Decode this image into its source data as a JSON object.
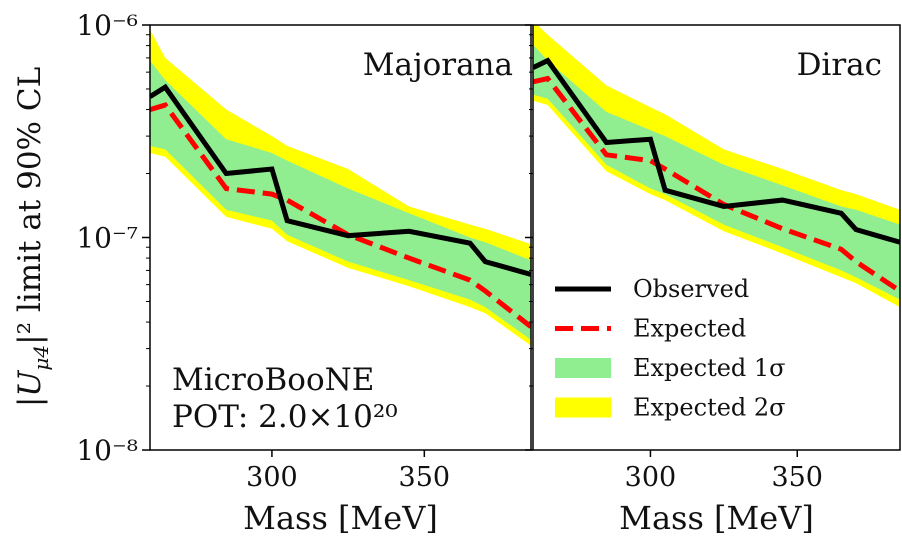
{
  "chart_data": [
    {
      "type": "line",
      "title": "Majorana",
      "xlabel": "Mass [MeV]",
      "ylabel": [
        "|U",
        "μ4",
        "|² limit at 90% CL"
      ],
      "annotation": [
        "MicroBooNE",
        "POT: 2.0×10²⁰"
      ],
      "x": [
        260,
        265,
        285,
        300,
        305,
        325,
        345,
        365,
        370,
        385
      ],
      "series": [
        {
          "name": "Observed",
          "color": "#000000",
          "style": "solid",
          "values": [
            4.6e-07,
            5.1e-07,
            2e-07,
            2.1e-07,
            1.2e-07,
            1.02e-07,
            1.07e-07,
            9.4e-08,
            7.7e-08,
            6.7e-08
          ]
        },
        {
          "name": "Expected",
          "color": "#ff0000",
          "style": "dashed",
          "values": [
            4e-07,
            4.2e-07,
            1.7e-07,
            1.6e-07,
            1.5e-07,
            1.03e-07,
            8e-08,
            6.3e-08,
            5.6e-08,
            3.8e-08
          ]
        }
      ],
      "bands": [
        {
          "name": "Expected 2σ",
          "color": "#ffff00",
          "lower": [
            2.5e-07,
            2.4e-07,
            1.25e-07,
            1.1e-07,
            9.6e-08,
            7.2e-08,
            5.9e-08,
            4.7e-08,
            4.4e-08,
            3.1e-08
          ],
          "upper": [
            9.5e-07,
            7e-07,
            4e-07,
            3e-07,
            2.7e-07,
            2.1e-07,
            1.4e-07,
            1.15e-07,
            1.1e-07,
            9.3e-08
          ]
        },
        {
          "name": "Expected 1σ",
          "color": "#90ee90",
          "lower": [
            2.7e-07,
            2.6e-07,
            1.35e-07,
            1.2e-07,
            1.03e-07,
            7.7e-08,
            6.3e-08,
            5.1e-08,
            4.7e-08,
            3.3e-08
          ],
          "upper": [
            6.8e-07,
            5.5e-07,
            2.9e-07,
            2.5e-07,
            2.3e-07,
            1.7e-07,
            1.3e-07,
            1e-07,
            9.5e-08,
            7.8e-08
          ]
        }
      ],
      "xlim": [
        260,
        385
      ],
      "xticks": [
        300,
        350
      ],
      "ylim": [
        1e-08,
        1e-06
      ],
      "log_y": true,
      "yticks": [
        {
          "value": 1e-08,
          "label": "10⁻⁸"
        },
        {
          "value": 1e-07,
          "label": "10⁻⁷"
        },
        {
          "value": 1e-06,
          "label": "10⁻⁶"
        }
      ],
      "yminorticks": [
        2e-08,
        3e-08,
        4e-08,
        5e-08,
        6e-08,
        7e-08,
        8e-08,
        9e-08,
        2e-07,
        3e-07,
        4e-07,
        5e-07,
        6e-07,
        7e-07,
        8e-07,
        9e-07
      ]
    },
    {
      "type": "line",
      "title": "Dirac",
      "xlabel": "Mass [MeV]",
      "sharey": true,
      "legend": "lower right",
      "x": [
        260,
        265,
        285,
        300,
        305,
        325,
        345,
        365,
        370,
        385
      ],
      "series": [
        {
          "name": "Observed",
          "color": "#000000",
          "style": "solid",
          "values": [
            6.3e-07,
            6.8e-07,
            2.8e-07,
            2.9e-07,
            1.67e-07,
            1.4e-07,
            1.5e-07,
            1.3e-07,
            1.09e-07,
            9.5e-08
          ]
        },
        {
          "name": "Expected",
          "color": "#ff0000",
          "style": "dashed",
          "values": [
            5.4e-07,
            5.6e-07,
            2.45e-07,
            2.3e-07,
            2.1e-07,
            1.43e-07,
            1.1e-07,
            8.8e-08,
            7.7e-08,
            5.6e-08
          ]
        }
      ],
      "bands": [
        {
          "name": "Expected 2σ",
          "color": "#ffff00",
          "lower": [
            4.4e-07,
            4.2e-07,
            2.05e-07,
            1.6e-07,
            1.5e-07,
            1.07e-07,
            8.4e-08,
            6.5e-08,
            6.1e-08,
            4.7e-08
          ],
          "upper": [
            1.05e-06,
            9e-07,
            5.2e-07,
            4.1e-07,
            3.8e-07,
            2.6e-07,
            2.1e-07,
            1.67e-07,
            1.6e-07,
            1.35e-07
          ]
        },
        {
          "name": "Expected 1σ",
          "color": "#90ee90",
          "lower": [
            4.7e-07,
            4.5e-07,
            2.2e-07,
            1.7e-07,
            1.6e-07,
            1.15e-07,
            9e-08,
            7e-08,
            6.5e-08,
            5.1e-08
          ],
          "upper": [
            8.1e-07,
            6.8e-07,
            3.9e-07,
            3.2e-07,
            3e-07,
            2.2e-07,
            1.76e-07,
            1.4e-07,
            1.35e-07,
            1.15e-07
          ]
        }
      ],
      "xlim": [
        260,
        385
      ],
      "xticks": [
        300,
        350
      ]
    }
  ]
}
